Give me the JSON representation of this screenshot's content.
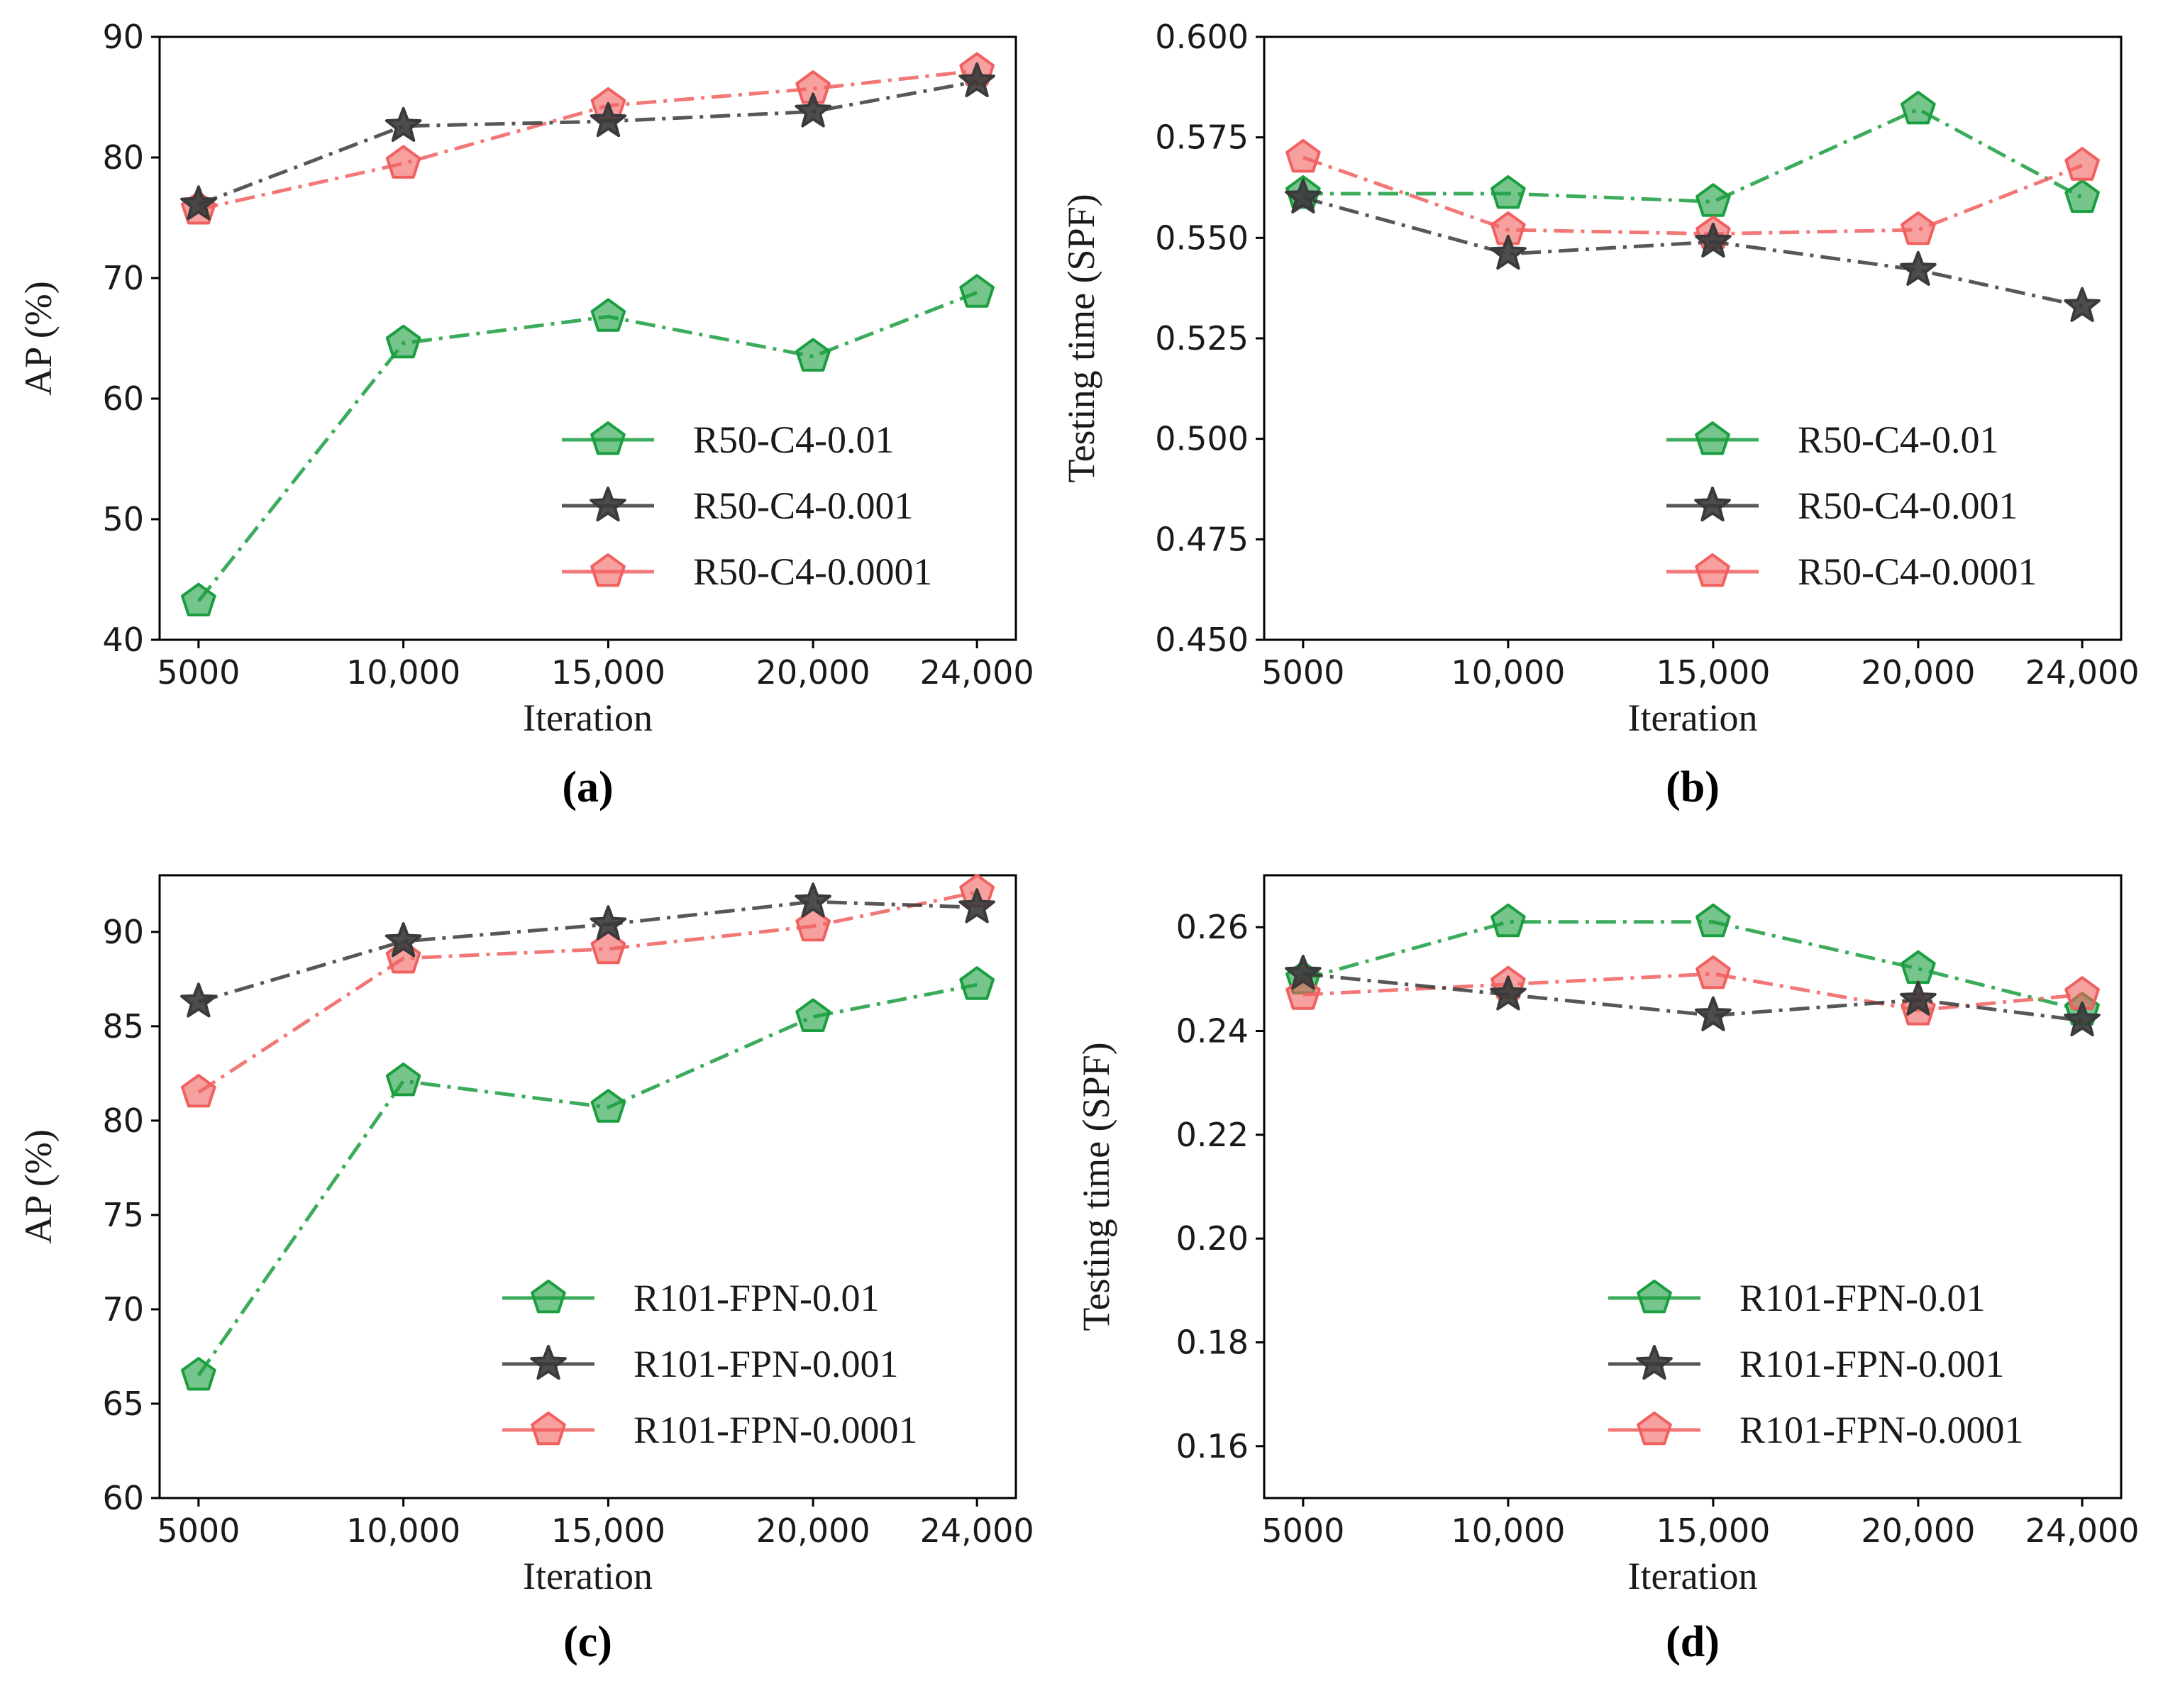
{
  "chart_data": [
    {
      "type": "line",
      "caption": "(a)",
      "xlabel": "Iteration",
      "ylabel": "AP (%)",
      "x": [
        5000,
        10000,
        15000,
        20000,
        24000
      ],
      "xticklabels": [
        "5000",
        "10,000",
        "15,000",
        "20,000",
        "24,000"
      ],
      "ylim": [
        40,
        90
      ],
      "yticks": [
        40,
        50,
        60,
        70,
        80,
        90
      ],
      "yticklabels": [
        "40",
        "50",
        "60",
        "70",
        "80",
        "90"
      ],
      "legend_position": "lower-right",
      "series": [
        {
          "name": "R50-C4-0.01",
          "marker": "pentagon",
          "color": "#1a9e3f",
          "values": [
            43.2,
            64.6,
            66.8,
            63.5,
            68.8
          ]
        },
        {
          "name": "R50-C4-0.001",
          "marker": "star",
          "color": "#3a3a3a",
          "values": [
            76.1,
            82.6,
            83.0,
            83.8,
            86.3
          ]
        },
        {
          "name": "R50-C4-0.0001",
          "marker": "pentagon",
          "color": "#f0605f",
          "values": [
            75.7,
            79.5,
            84.3,
            85.7,
            87.2
          ]
        }
      ]
    },
    {
      "type": "line",
      "caption": "(b)",
      "xlabel": "Iteration",
      "ylabel": "Testing time (SPF)",
      "x": [
        5000,
        10000,
        15000,
        20000,
        24000
      ],
      "xticklabels": [
        "5000",
        "10,000",
        "15,000",
        "20,000",
        "24,000"
      ],
      "ylim": [
        0.45,
        0.6
      ],
      "yticks": [
        0.45,
        0.475,
        0.5,
        0.525,
        0.55,
        0.575,
        0.6
      ],
      "yticklabels": [
        "0.450",
        "0.475",
        "0.500",
        "0.525",
        "0.550",
        "0.575",
        "0.600"
      ],
      "legend_position": "lower-right",
      "series": [
        {
          "name": "R50-C4-0.01",
          "marker": "pentagon",
          "color": "#1a9e3f",
          "values": [
            0.561,
            0.561,
            0.559,
            0.582,
            0.56
          ]
        },
        {
          "name": "R50-C4-0.001",
          "marker": "star",
          "color": "#3a3a3a",
          "values": [
            0.56,
            0.546,
            0.549,
            0.542,
            0.533
          ]
        },
        {
          "name": "R50-C4-0.0001",
          "marker": "pentagon",
          "color": "#f0605f",
          "values": [
            0.57,
            0.552,
            0.551,
            0.552,
            0.568
          ]
        }
      ]
    },
    {
      "type": "line",
      "caption": "(c)",
      "xlabel": "Iteration",
      "ylabel": "AP (%)",
      "x": [
        5000,
        10000,
        15000,
        20000,
        24000
      ],
      "xticklabels": [
        "5000",
        "10,000",
        "15,000",
        "20,000",
        "24,000"
      ],
      "ylim": [
        60,
        93
      ],
      "yticks": [
        60,
        65,
        70,
        75,
        80,
        85,
        90
      ],
      "yticklabels": [
        "60",
        "65",
        "70",
        "75",
        "80",
        "85",
        "90"
      ],
      "legend_position": "lower-right",
      "series": [
        {
          "name": "R101-FPN-0.01",
          "marker": "pentagon",
          "color": "#1a9e3f",
          "values": [
            66.5,
            82.1,
            80.7,
            85.5,
            87.2
          ]
        },
        {
          "name": "R101-FPN-0.001",
          "marker": "star",
          "color": "#3a3a3a",
          "values": [
            86.3,
            89.5,
            90.4,
            91.6,
            91.3
          ]
        },
        {
          "name": "R101-FPN-0.0001",
          "marker": "pentagon",
          "color": "#f0605f",
          "values": [
            81.5,
            88.6,
            89.1,
            90.3,
            92.1
          ]
        }
      ]
    },
    {
      "type": "line",
      "caption": "(d)",
      "xlabel": "Iteration",
      "ylabel": "Testing time (SPF)",
      "x": [
        5000,
        10000,
        15000,
        20000,
        24000
      ],
      "xticklabels": [
        "5000",
        "10,000",
        "15,000",
        "20,000",
        "24,000"
      ],
      "ylim": [
        0.15,
        0.27
      ],
      "yticks": [
        0.16,
        0.18,
        0.2,
        0.22,
        0.24,
        0.26
      ],
      "yticklabels": [
        "0.16",
        "0.18",
        "0.20",
        "0.22",
        "0.24",
        "0.26"
      ],
      "legend_position": "lower-right",
      "series": [
        {
          "name": "R101-FPN-0.01",
          "marker": "pentagon",
          "color": "#1a9e3f",
          "values": [
            0.25,
            0.261,
            0.261,
            0.252,
            0.244
          ]
        },
        {
          "name": "R101-FPN-0.001",
          "marker": "star",
          "color": "#3a3a3a",
          "values": [
            0.251,
            0.247,
            0.243,
            0.246,
            0.242
          ]
        },
        {
          "name": "R101-FPN-0.0001",
          "marker": "pentagon",
          "color": "#f0605f",
          "values": [
            0.247,
            0.249,
            0.251,
            0.244,
            0.247
          ]
        }
      ]
    }
  ]
}
